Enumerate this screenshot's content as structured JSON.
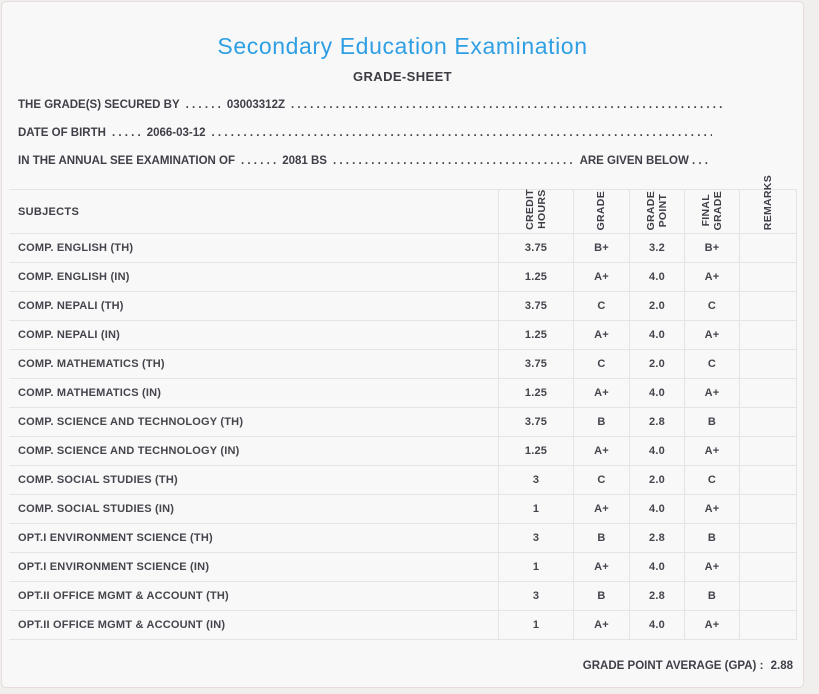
{
  "page": {
    "title": "Secondary Education Examination",
    "subtitle": "GRADE-SHEET"
  },
  "info": {
    "filler": ". . . . . . . . . . . . . . . . . . . . . . . . . . . . . . . . . . . . . . . . . . . . . . . . . . . . . . . . . . . . . . . . . . . . . . . . . . . . . . . . . . . .",
    "lines": [
      {
        "label": "THE GRADE(S) SECURED BY",
        "sep": ". . . . . .",
        "value": "03003312Z",
        "suffix": ""
      },
      {
        "label": "DATE OF BIRTH",
        "sep": ". . . . .",
        "value": "2066-03-12",
        "suffix": ""
      },
      {
        "label": "IN THE ANNUAL SEE EXAMINATION OF",
        "sep": ". . . . . .",
        "value": "2081 BS",
        "suffix": "ARE GIVEN BELOW . . ."
      }
    ]
  },
  "table": {
    "columns": [
      {
        "label": "SUBJECTS"
      },
      {
        "label": "CREDIT\nHOURS"
      },
      {
        "label": "GRADE"
      },
      {
        "label": "GRADE\nPOINT"
      },
      {
        "label": "FINAL\nGRADE"
      },
      {
        "label": "REMARKS"
      }
    ],
    "rows": [
      {
        "subject": "COMP. ENGLISH (TH)",
        "credit_hours": "3.75",
        "grade": "B+",
        "grade_point": "3.2",
        "final_grade": "B+",
        "remarks": ""
      },
      {
        "subject": "COMP. ENGLISH (IN)",
        "credit_hours": "1.25",
        "grade": "A+",
        "grade_point": "4.0",
        "final_grade": "A+",
        "remarks": ""
      },
      {
        "subject": "COMP. NEPALI (TH)",
        "credit_hours": "3.75",
        "grade": "C",
        "grade_point": "2.0",
        "final_grade": "C",
        "remarks": ""
      },
      {
        "subject": "COMP. NEPALI (IN)",
        "credit_hours": "1.25",
        "grade": "A+",
        "grade_point": "4.0",
        "final_grade": "A+",
        "remarks": ""
      },
      {
        "subject": "COMP. MATHEMATICS (TH)",
        "credit_hours": "3.75",
        "grade": "C",
        "grade_point": "2.0",
        "final_grade": "C",
        "remarks": ""
      },
      {
        "subject": "COMP. MATHEMATICS (IN)",
        "credit_hours": "1.25",
        "grade": "A+",
        "grade_point": "4.0",
        "final_grade": "A+",
        "remarks": ""
      },
      {
        "subject": "COMP. SCIENCE AND TECHNOLOGY (TH)",
        "credit_hours": "3.75",
        "grade": "B",
        "grade_point": "2.8",
        "final_grade": "B",
        "remarks": ""
      },
      {
        "subject": "COMP. SCIENCE AND TECHNOLOGY (IN)",
        "credit_hours": "1.25",
        "grade": "A+",
        "grade_point": "4.0",
        "final_grade": "A+",
        "remarks": ""
      },
      {
        "subject": "COMP. SOCIAL STUDIES (TH)",
        "credit_hours": "3",
        "grade": "C",
        "grade_point": "2.0",
        "final_grade": "C",
        "remarks": ""
      },
      {
        "subject": "COMP. SOCIAL STUDIES (IN)",
        "credit_hours": "1",
        "grade": "A+",
        "grade_point": "4.0",
        "final_grade": "A+",
        "remarks": ""
      },
      {
        "subject": "OPT.I ENVIRONMENT SCIENCE (TH)",
        "credit_hours": "3",
        "grade": "B",
        "grade_point": "2.8",
        "final_grade": "B",
        "remarks": ""
      },
      {
        "subject": "OPT.I ENVIRONMENT SCIENCE (IN)",
        "credit_hours": "1",
        "grade": "A+",
        "grade_point": "4.0",
        "final_grade": "A+",
        "remarks": ""
      },
      {
        "subject": "OPT.II OFFICE MGMT & ACCOUNT (TH)",
        "credit_hours": "3",
        "grade": "B",
        "grade_point": "2.8",
        "final_grade": "B",
        "remarks": ""
      },
      {
        "subject": "OPT.II OFFICE MGMT & ACCOUNT (IN)",
        "credit_hours": "1",
        "grade": "A+",
        "grade_point": "4.0",
        "final_grade": "A+",
        "remarks": ""
      }
    ]
  },
  "footer": {
    "gpa_label": "GRADE POINT AVERAGE (GPA) :",
    "gpa_value": "2.88"
  },
  "colors": {
    "accent_blue": "#2f9fe4",
    "text_dark": "#3f3f48",
    "border_light": "#e4e4e4",
    "page_bg": "#f8f8f8"
  }
}
